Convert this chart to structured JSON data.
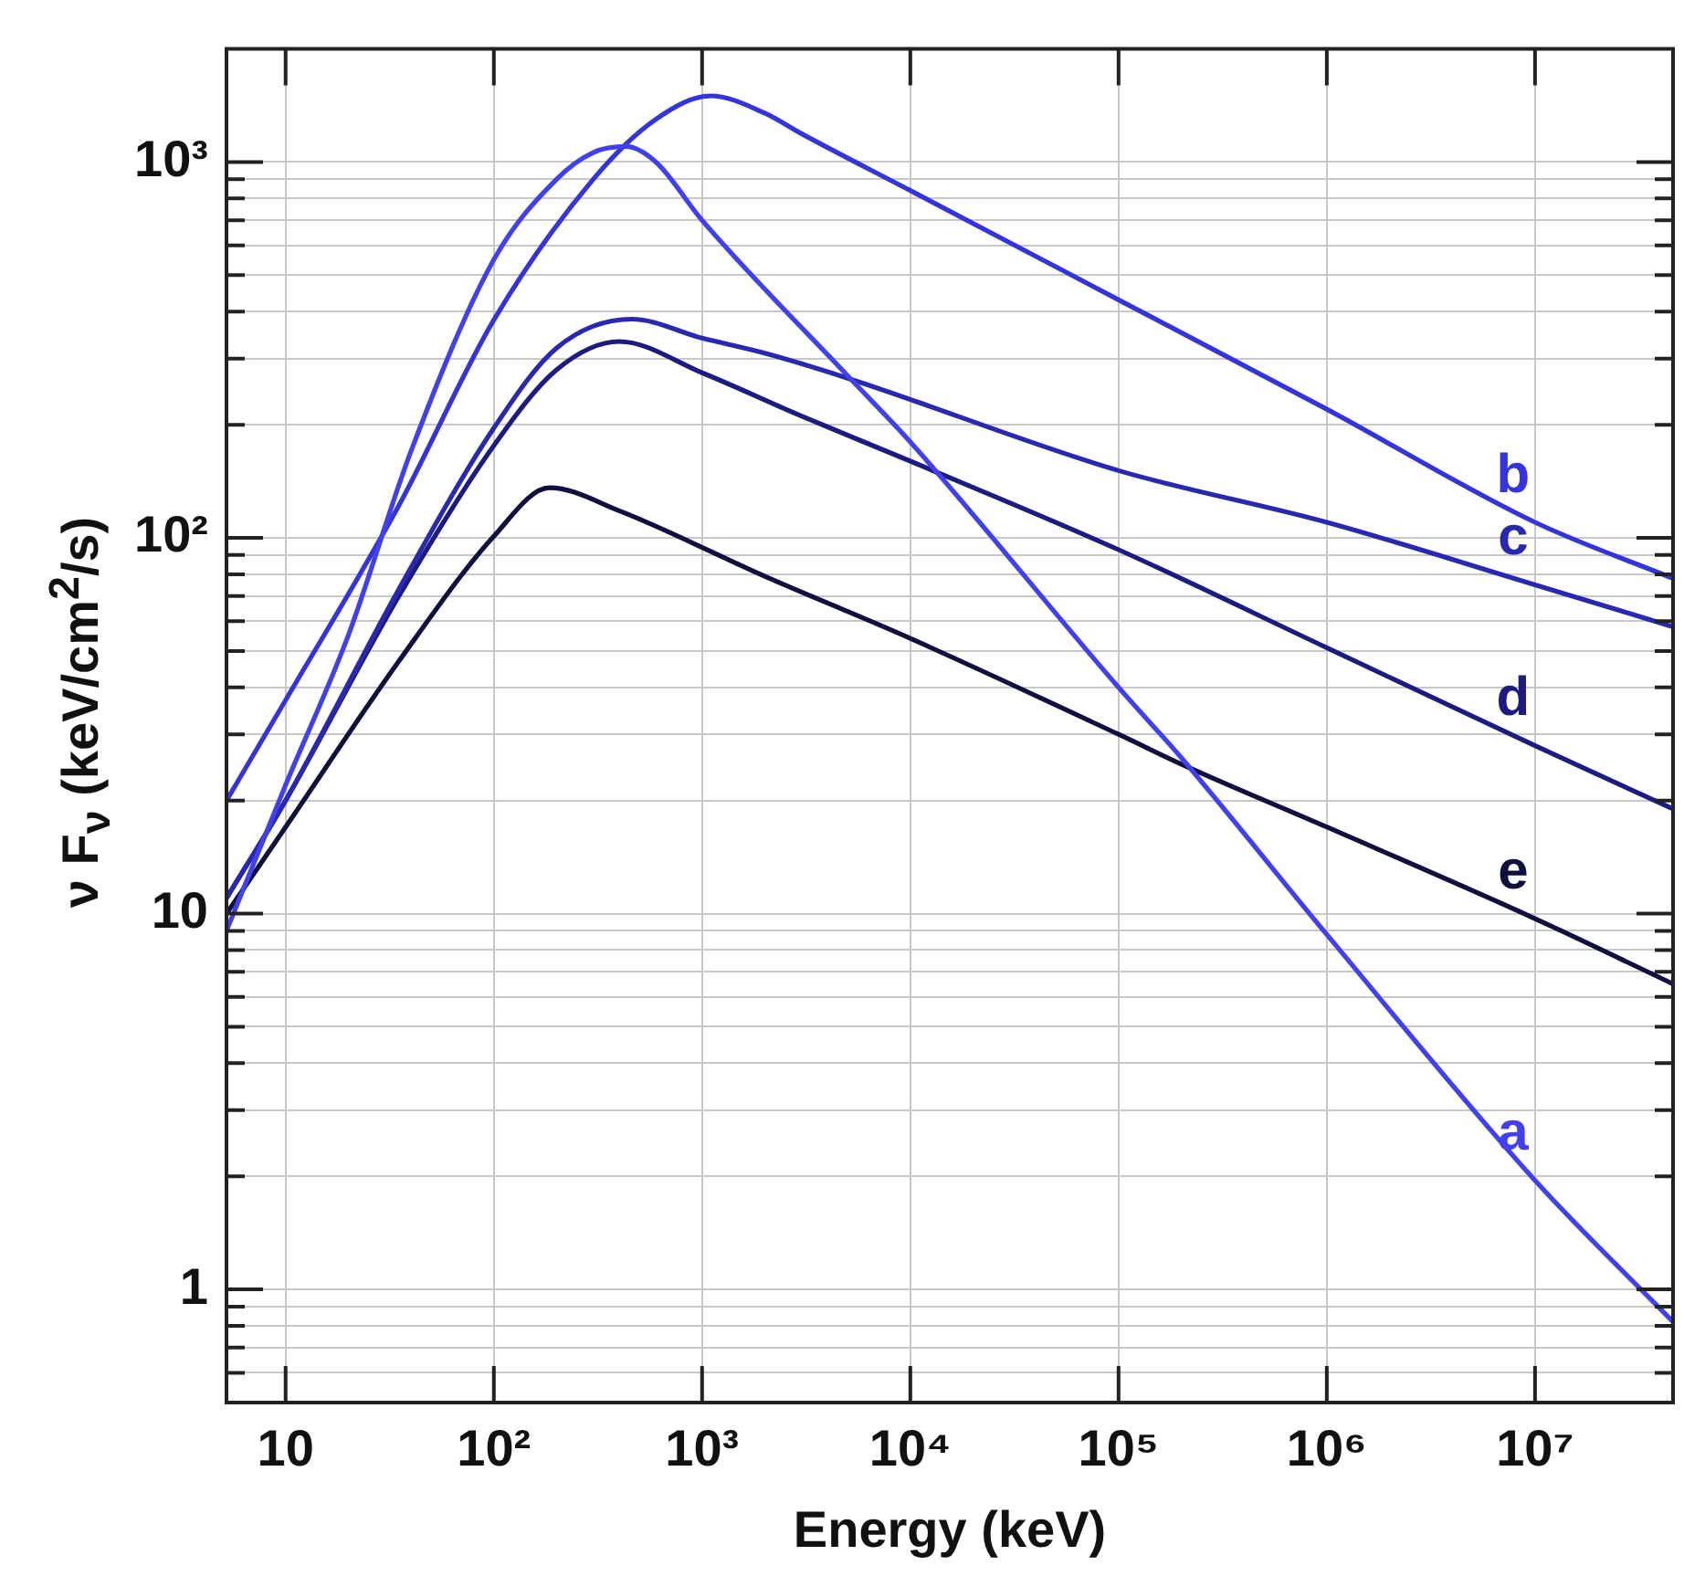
{
  "chart_data": {
    "type": "line",
    "xlabel": "Energy   (keV)",
    "ylabel": "ν F$_{ν}$   (keV/cm$^{2}$/s)",
    "log": "xy",
    "grid": true,
    "legend": false,
    "marker": "none",
    "line_style": "solid",
    "xlim": [
      5.2,
      46000000
    ],
    "ylim": [
      0.5,
      2000
    ],
    "xticks": [
      10,
      {
        "value": 100,
        "label": "10²"
      },
      {
        "value": 1000,
        "label": "10³"
      },
      {
        "value": 10000,
        "label": "10⁴"
      },
      {
        "value": 100000,
        "label": "10⁵"
      },
      {
        "value": 1000000,
        "label": "10⁶"
      },
      {
        "value": 10000000,
        "label": "10⁷"
      }
    ],
    "yticks": [
      {
        "value": 0.6,
        "label": null
      },
      {
        "value": 0.7,
        "label": null
      },
      {
        "value": 0.8,
        "label": null
      },
      {
        "value": 0.9,
        "label": null
      },
      1,
      {
        "value": 2,
        "label": null
      },
      {
        "value": 3,
        "label": null
      },
      {
        "value": 4,
        "label": null
      },
      {
        "value": 5,
        "label": null
      },
      {
        "value": 6,
        "label": null
      },
      {
        "value": 7,
        "label": null
      },
      {
        "value": 8,
        "label": null
      },
      {
        "value": 9,
        "label": null
      },
      10,
      {
        "value": 20,
        "label": null
      },
      {
        "value": 30,
        "label": null
      },
      {
        "value": 40,
        "label": null
      },
      {
        "value": 50,
        "label": null
      },
      {
        "value": 60,
        "label": null
      },
      {
        "value": 70,
        "label": null
      },
      {
        "value": 80,
        "label": null
      },
      {
        "value": 90,
        "label": null
      },
      {
        "value": 100,
        "label": "10²"
      },
      {
        "value": 200,
        "label": null
      },
      {
        "value": 300,
        "label": null
      },
      {
        "value": 400,
        "label": null
      },
      {
        "value": 500,
        "label": null
      },
      {
        "value": 600,
        "label": null
      },
      {
        "value": 700,
        "label": null
      },
      {
        "value": 800,
        "label": null
      },
      {
        "value": 900,
        "label": null
      },
      {
        "value": 1000,
        "label": "10³"
      }
    ],
    "series": [
      {
        "name": "a",
        "color": "#4040ee",
        "x": [
          5.2,
          10,
          20,
          40,
          100,
          200,
          300,
          430,
          600,
          1000,
          5000,
          10000,
          100000,
          200000,
          1000000,
          10000000,
          46000000
        ],
        "values": [
          9,
          22,
          55,
          170,
          550,
          900,
          1060,
          1100,
          1000,
          700,
          270,
          180,
          40,
          26,
          8.8,
          1.95,
          0.82
        ]
      },
      {
        "name": "b",
        "color": "#3434dd",
        "x": [
          5.2,
          10,
          35,
          100,
          300,
          600,
          1100,
          2000,
          3000,
          10000,
          100000,
          1000000,
          10000000,
          46000000
        ],
        "values": [
          20,
          37,
          122,
          380,
          900,
          1300,
          1500,
          1350,
          1190,
          840,
          430,
          220,
          110,
          78
        ]
      },
      {
        "name": "c",
        "color": "#2828b0",
        "x": [
          5.2,
          10,
          35,
          100,
          200,
          460,
          1000,
          2000,
          5000,
          100000,
          1000000,
          10000000,
          46000000
        ],
        "values": [
          11,
          20,
          73,
          196,
          320,
          382,
          340,
          310,
          266,
          151,
          110,
          75,
          58
        ]
      },
      {
        "name": "d",
        "color": "#1c1c80",
        "x": [
          5.2,
          10,
          35,
          100,
          200,
          400,
          1000,
          3000,
          10000,
          100000,
          1000000,
          10000000,
          46000000
        ],
        "values": [
          11,
          20,
          70,
          176,
          280,
          333,
          275,
          211,
          160,
          93,
          51,
          28,
          19
        ]
      },
      {
        "name": "e",
        "color": "#101040",
        "x": [
          5.2,
          10,
          35,
          100,
          185,
          400,
          2000,
          10000,
          100000,
          200000,
          1000000,
          10000000,
          46000000
        ],
        "values": [
          10,
          17,
          47,
          101,
          136,
          118,
          79,
          54,
          30,
          25,
          17,
          9.7,
          6.5
        ]
      }
    ]
  }
}
